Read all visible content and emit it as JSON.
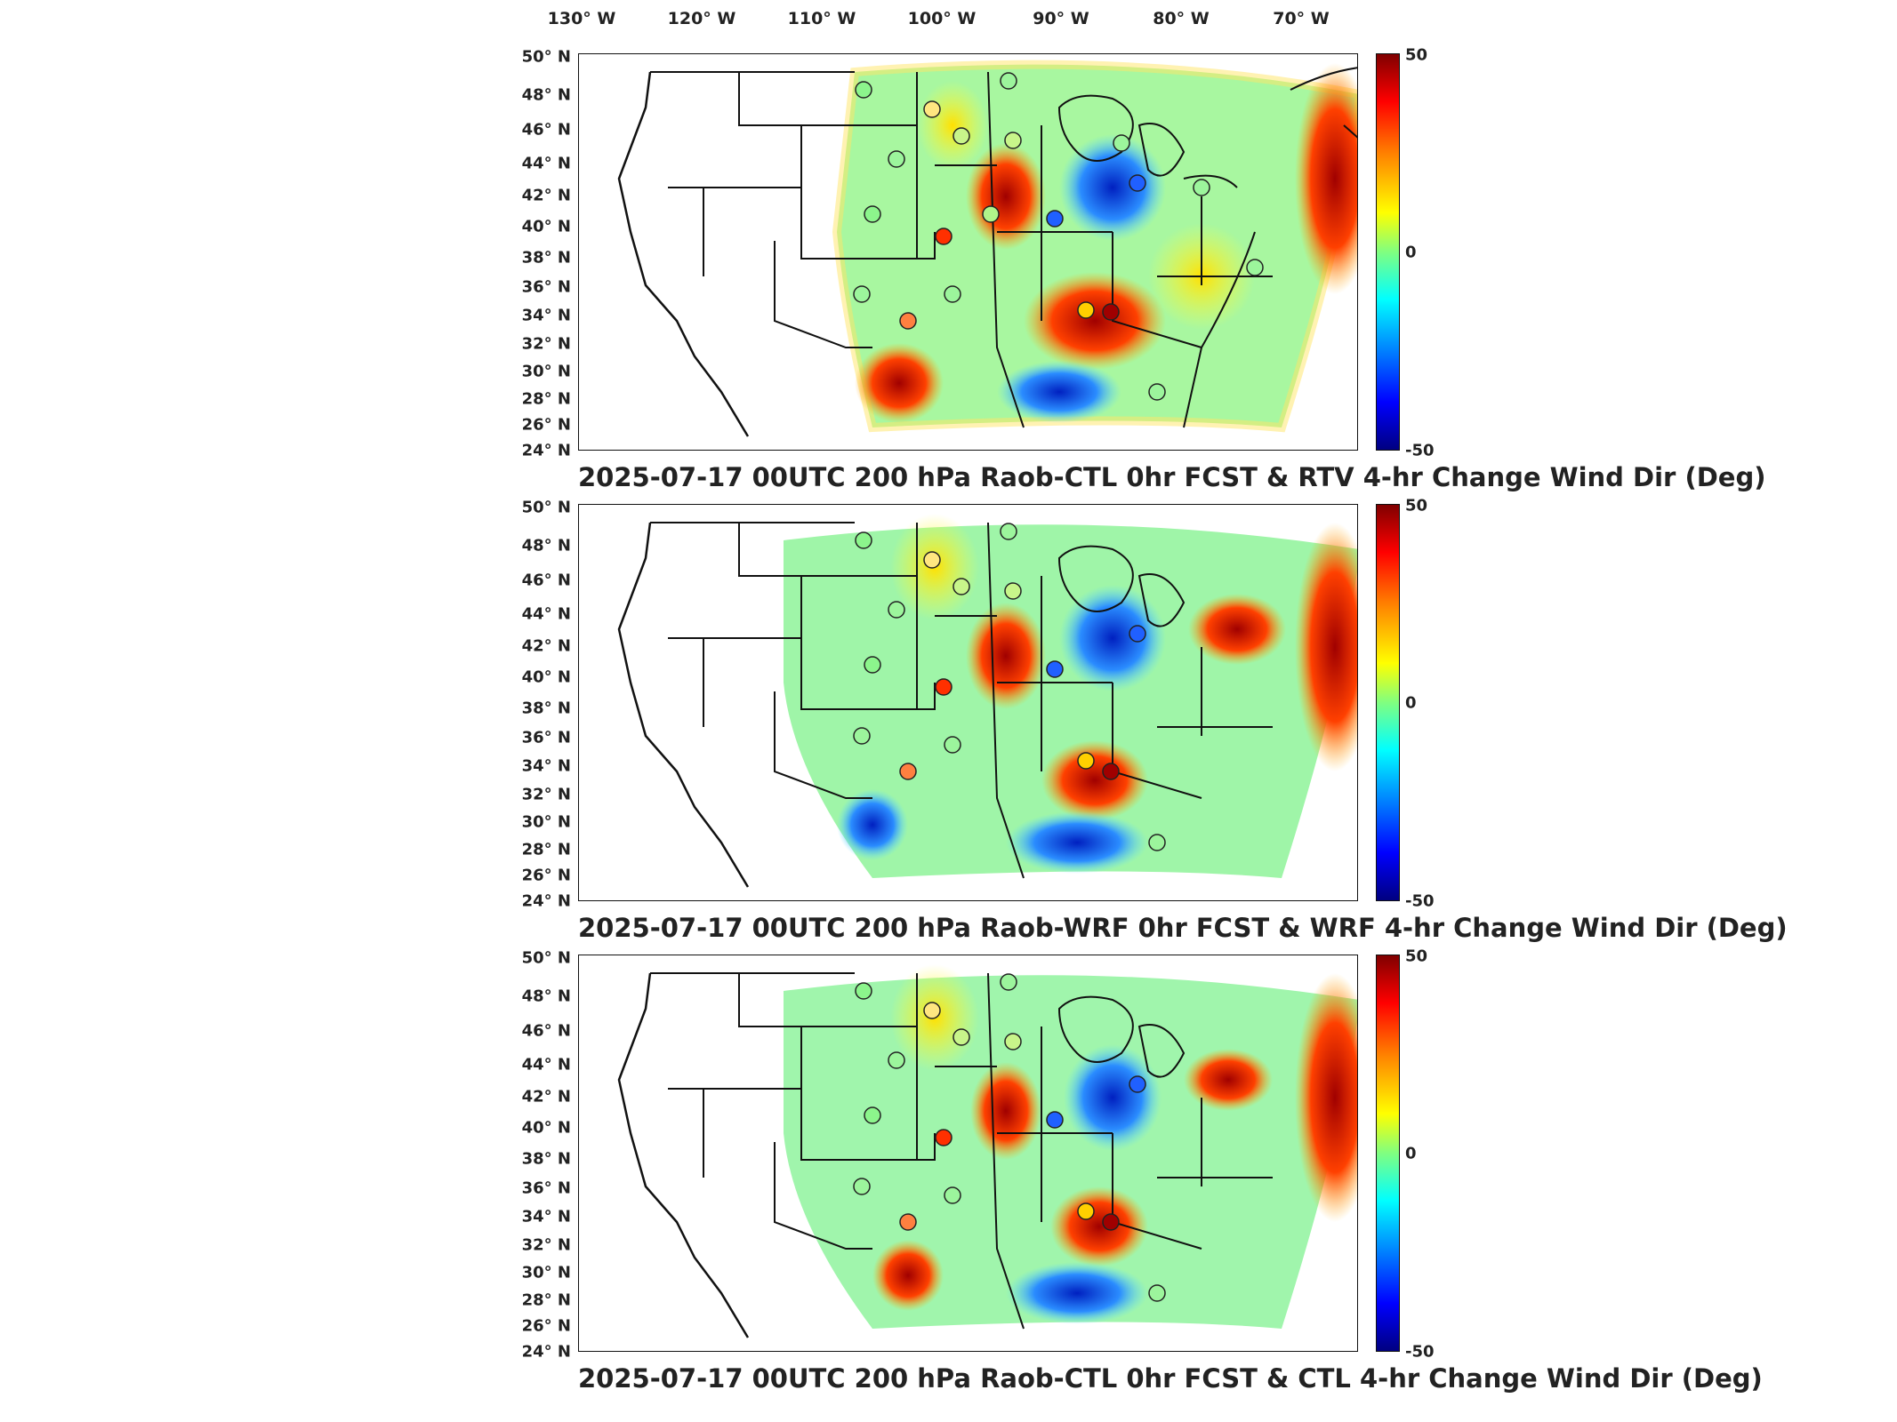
{
  "lon_labels": [
    "130° W",
    "120° W",
    "110° W",
    "100° W",
    "90° W",
    "80° W",
    "70° W"
  ],
  "lat_labels": [
    "50° N",
    "48° N",
    "46° N",
    "44° N",
    "42° N",
    "40° N",
    "38° N",
    "36° N",
    "34° N",
    "32° N",
    "30° N",
    "28° N",
    "26° N",
    "24° N"
  ],
  "colorbar": {
    "max": "50",
    "mid": "0",
    "min": "-50"
  },
  "panels": [
    {
      "title": "2025-07-17 00UTC 200 hPa Raob-CTL 0hr FCST & RTV 4-hr Change Wind Dir (Deg)"
    },
    {
      "title": "2025-07-17 00UTC 200 hPa Raob-WRF 0hr FCST & WRF 4-hr Change Wind Dir (Deg)"
    },
    {
      "title": "2025-07-17 00UTC 200 hPa Raob-CTL 0hr FCST & CTL 4-hr Change Wind Dir (Deg)"
    }
  ],
  "colors": {
    "hot": "#c00000",
    "cold": "#0040ff",
    "neutral": "#7fff7f",
    "warm": "#ffd000"
  }
}
